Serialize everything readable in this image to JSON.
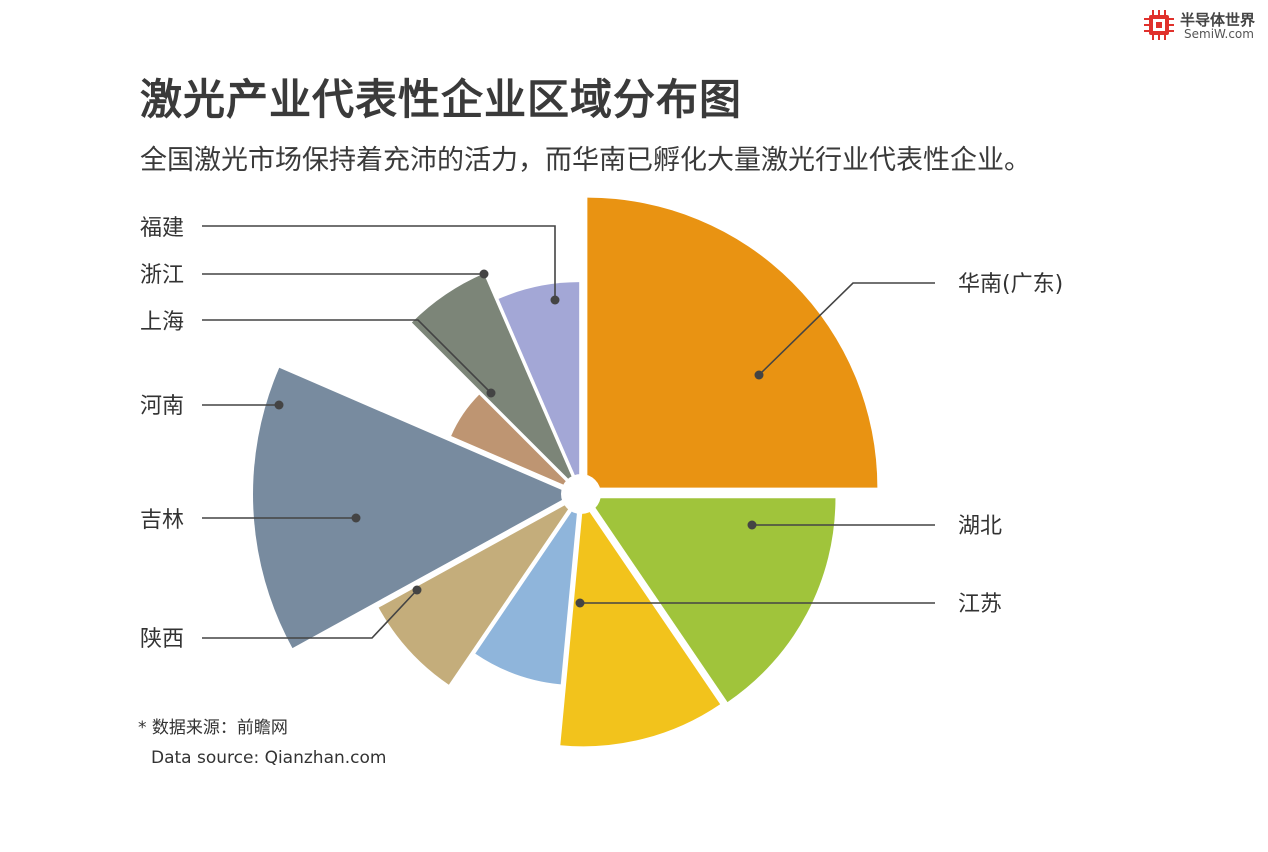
{
  "header": {
    "title": "激光产业代表性企业区域分布图",
    "subtitle": "全国激光市场保持着充沛的活力，而华南已孵化大量激光行业代表性企业。"
  },
  "logo": {
    "name": "半导体世界",
    "url": "SemiW.com"
  },
  "source": {
    "line_cn": "* 数据来源：前瞻网",
    "line_en": "Data source: Qianzhan.com"
  },
  "chart_data": {
    "type": "pie",
    "variant": "rose",
    "title": "激光产业代表性企业区域分布图",
    "subtitle": "全国激光市场保持着充沛的活力，而华南已孵化大量激光行业代表性企业。",
    "slices": [
      {
        "label": "华南(广东)",
        "angle_share": 0.25,
        "radius_share": 1.0,
        "color": "#E99312"
      },
      {
        "label": "湖北",
        "angle_share": 0.155,
        "radius_share": 0.85,
        "color": "#A0C43B"
      },
      {
        "label": "江苏",
        "angle_share": 0.11,
        "radius_share": 0.84,
        "color": "#F2C31C"
      },
      {
        "label": "陕西",
        "angle_share": 0.08,
        "radius_share": 0.63,
        "color": "#8FB5DB"
      },
      {
        "label": "吉林",
        "angle_share": 0.075,
        "radius_share": 0.77,
        "color": "#C4AD7B"
      },
      {
        "label": "河南",
        "angle_share": 0.145,
        "radius_share": 1.1,
        "color": "#788B9F"
      },
      {
        "label": "上海",
        "angle_share": 0.06,
        "radius_share": 0.46,
        "color": "#BE9572"
      },
      {
        "label": "浙江",
        "angle_share": 0.06,
        "radius_share": 0.8,
        "color": "#7C8578"
      },
      {
        "label": "福建",
        "angle_share": 0.065,
        "radius_share": 0.7,
        "color": "#A3A7D6"
      }
    ],
    "legend": "callout labels"
  }
}
